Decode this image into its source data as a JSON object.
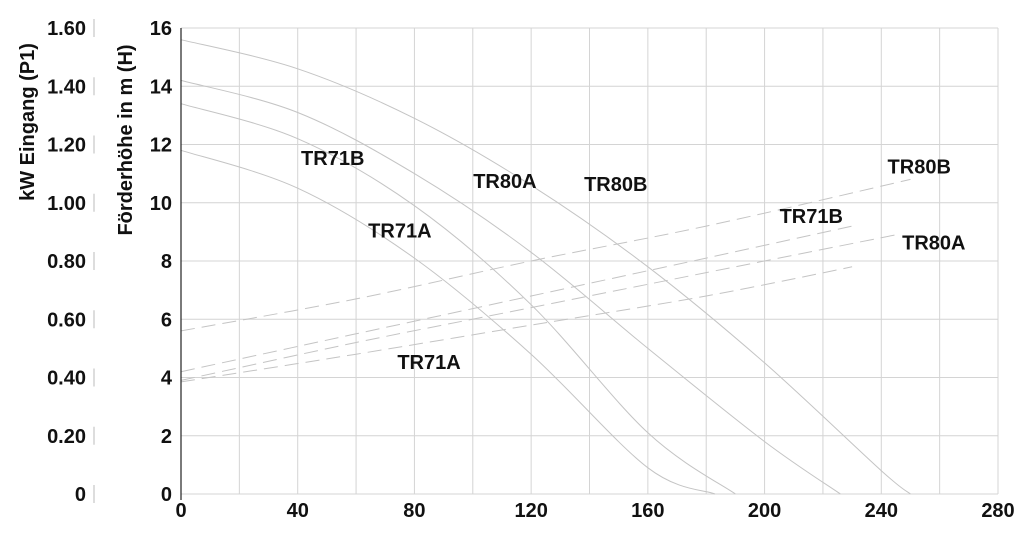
{
  "chart_data": {
    "type": "line",
    "y2label": "kW Eingang (P1)",
    "ylabel": "Förderhöhe in m (H)",
    "xlim": [
      0,
      280
    ],
    "ylim": [
      0,
      16
    ],
    "y2lim": [
      0,
      1.6
    ],
    "grid": true,
    "x_ticks": [
      "0",
      "40",
      "80",
      "120",
      "160",
      "200",
      "240",
      "280"
    ],
    "y_ticks": [
      "0",
      "2",
      "4",
      "6",
      "8",
      "10",
      "12",
      "14",
      "16"
    ],
    "y2_ticks": [
      "0",
      "0.20",
      "0.40",
      "0.60",
      "0.80",
      "1.00",
      "1.20",
      "1.40",
      "1.60"
    ],
    "head_series": [
      {
        "name": "TR71B",
        "axis": "left",
        "x": [
          0,
          40,
          80,
          120,
          160,
          190
        ],
        "y": [
          13.4,
          12.2,
          9.9,
          6.5,
          2.1,
          0
        ]
      },
      {
        "name": "TR71A",
        "axis": "left",
        "x": [
          0,
          40,
          80,
          120,
          160,
          183
        ],
        "y": [
          11.8,
          10.5,
          8.1,
          4.8,
          0.9,
          0
        ]
      },
      {
        "name": "TR80A",
        "axis": "left",
        "x": [
          0,
          40,
          80,
          120,
          160,
          200,
          226
        ],
        "y": [
          14.2,
          13.1,
          11.0,
          8.3,
          5.0,
          1.8,
          0
        ]
      },
      {
        "name": "TR80B",
        "axis": "left",
        "x": [
          0,
          40,
          80,
          120,
          160,
          200,
          240,
          250
        ],
        "y": [
          15.6,
          14.6,
          12.9,
          10.6,
          7.8,
          4.5,
          0.8,
          0
        ]
      }
    ],
    "power_series": [
      {
        "name": "TR71B",
        "axis": "right",
        "x": [
          0,
          60,
          120,
          180,
          230
        ],
        "y": [
          0.42,
          0.55,
          0.68,
          0.81,
          0.92
        ]
      },
      {
        "name": "TR71A",
        "axis": "right",
        "x": [
          0,
          60,
          120,
          180,
          230
        ],
        "y": [
          0.385,
          0.48,
          0.58,
          0.68,
          0.78
        ]
      },
      {
        "name": "TR80A",
        "axis": "right",
        "x": [
          0,
          60,
          120,
          180,
          245
        ],
        "y": [
          0.39,
          0.52,
          0.64,
          0.76,
          0.89
        ]
      },
      {
        "name": "TR80B",
        "axis": "right",
        "x": [
          0,
          60,
          120,
          180,
          250
        ],
        "y": [
          0.56,
          0.67,
          0.8,
          0.92,
          1.08
        ]
      }
    ],
    "curve_labels": [
      {
        "text": "TR71B",
        "x": 52,
        "y": 11.3,
        "anchor": "middle"
      },
      {
        "text": "TR71A",
        "x": 75,
        "y": 8.8,
        "anchor": "middle"
      },
      {
        "text": "TR80A",
        "x": 111,
        "y": 10.5,
        "anchor": "middle"
      },
      {
        "text": "TR80B",
        "x": 149,
        "y": 10.4,
        "anchor": "middle"
      },
      {
        "text": "TR80B",
        "x": 253,
        "y": 11.0,
        "anchor": "middle"
      },
      {
        "text": "TR71B",
        "x": 216,
        "y": 9.3,
        "anchor": "middle"
      },
      {
        "text": "TR80A",
        "x": 258,
        "y": 8.4,
        "anchor": "middle"
      },
      {
        "text": "TR71A",
        "x": 85,
        "y": 4.3,
        "anchor": "middle"
      }
    ],
    "colors": {
      "grid": "#d4d4d4",
      "curves": "#c4c4c4",
      "text": "#111111"
    }
  }
}
